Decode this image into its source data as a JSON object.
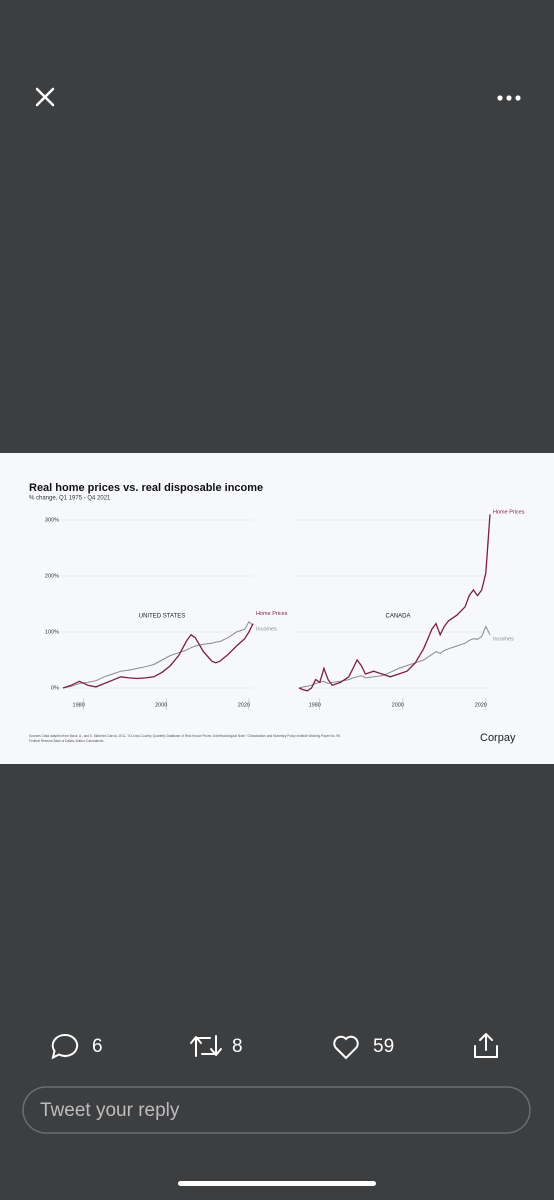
{
  "chart": {
    "title": "Real home prices vs. real disposable income",
    "subtitle": "% change, Q1 1975 - Q4 2021",
    "source": [
      "Sources: Data adapted from Mack, A., and E. Martínez-García. 2011. \"A Cross-Country Quarterly Database of Real House Prices: A Methodological Note.\" Globalization and Monetary Policy Institute Working Paper No. 99.",
      "Federal Reserve Bank of Dallas; Author Calculations."
    ],
    "brand": "Corpay"
  },
  "chart_data": [
    {
      "type": "line",
      "annotation": "UNITED STATES",
      "x": [
        1975,
        1977,
        1979,
        1981,
        1983,
        1985,
        1987,
        1989,
        1991,
        1993,
        1995,
        1997,
        1999,
        2001,
        2003,
        2005,
        2006,
        2007,
        2009,
        2011,
        2012,
        2013,
        2015,
        2017,
        2019,
        2020,
        2021
      ],
      "series": [
        {
          "name": "Home Prices",
          "color": "#7a1f3d",
          "values": [
            0,
            5,
            12,
            5,
            2,
            8,
            14,
            20,
            18,
            17,
            18,
            20,
            28,
            40,
            58,
            85,
            95,
            90,
            65,
            48,
            45,
            48,
            60,
            75,
            88,
            100,
            115
          ]
        },
        {
          "name": "Incomes",
          "color": "#8a8a8a",
          "values": [
            0,
            3,
            8,
            10,
            13,
            20,
            25,
            30,
            32,
            35,
            38,
            42,
            50,
            58,
            63,
            68,
            72,
            75,
            78,
            80,
            82,
            83,
            90,
            100,
            105,
            118,
            112
          ]
        }
      ],
      "xlim": [
        1975,
        2021
      ],
      "xticks": [
        1980,
        2000,
        2020
      ],
      "ylim": [
        0,
        300
      ],
      "yticks": [
        {
          "value": 0,
          "label": "0%"
        },
        {
          "value": 100,
          "label": "100%"
        },
        {
          "value": 200,
          "label": "200%"
        },
        {
          "value": 300,
          "label": "300%"
        }
      ],
      "grid": true
    },
    {
      "type": "line",
      "annotation": "CANADA",
      "x": [
        1975,
        1976,
        1977,
        1978,
        1979,
        1980,
        1981,
        1982,
        1983,
        1985,
        1987,
        1988,
        1989,
        1990,
        1991,
        1993,
        1995,
        1997,
        1999,
        2001,
        2003,
        2005,
        2007,
        2008,
        2009,
        2010,
        2011,
        2013,
        2015,
        2016,
        2017,
        2018,
        2019,
        2020,
        2021
      ],
      "series": [
        {
          "name": "Home Prices",
          "color": "#7a1f3d",
          "values": [
            0,
            -3,
            -5,
            0,
            15,
            10,
            35,
            15,
            5,
            10,
            20,
            35,
            50,
            40,
            25,
            30,
            25,
            20,
            25,
            30,
            45,
            70,
            105,
            115,
            95,
            110,
            120,
            130,
            145,
            165,
            175,
            165,
            175,
            205,
            310
          ]
        },
        {
          "name": "Incomes",
          "color": "#8a8a8a",
          "values": [
            0,
            2,
            3,
            5,
            8,
            10,
            12,
            8,
            10,
            12,
            15,
            18,
            20,
            22,
            18,
            20,
            22,
            28,
            35,
            40,
            45,
            50,
            60,
            65,
            62,
            67,
            70,
            75,
            80,
            85,
            88,
            87,
            92,
            110,
            95
          ]
        }
      ],
      "xlim": [
        1975,
        2021
      ],
      "xticks": [
        1980,
        2000,
        2020
      ],
      "ylim": [
        0,
        300
      ],
      "yticks": [
        0,
        100,
        200,
        300
      ],
      "grid": true
    }
  ],
  "actions": {
    "replies": 6,
    "retweets": 8,
    "likes": 59
  },
  "reply_placeholder": "Tweet your reply"
}
